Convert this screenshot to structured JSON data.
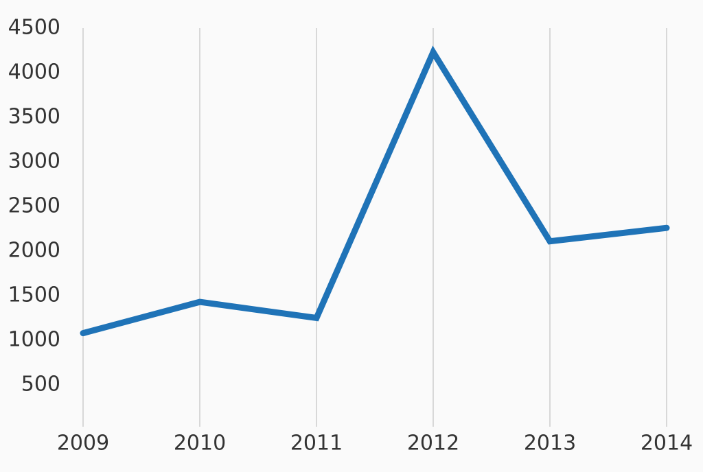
{
  "chart_data": {
    "type": "line",
    "x": [
      2009,
      2010,
      2011,
      2012,
      2013,
      2014
    ],
    "xlim": [
      2009,
      2014
    ],
    "xticks": [
      2009,
      2010,
      2011,
      2012,
      2013,
      2014
    ],
    "series": [
      {
        "color": "#1f73b7",
        "values": [
          1080,
          1430,
          1250,
          4230,
          2110,
          2260
        ]
      }
    ],
    "ylim": [
      0,
      4500
    ],
    "yticks": [
      500,
      1000,
      1500,
      2000,
      2500,
      3000,
      3500,
      4000,
      4500
    ],
    "grid": "x"
  }
}
